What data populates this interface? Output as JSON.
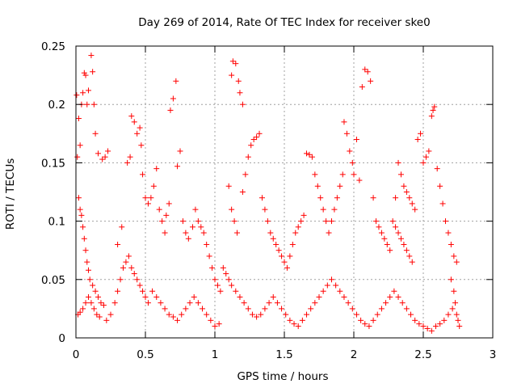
{
  "chart_data": {
    "type": "scatter",
    "title": "Day 269 of 2014, Rate Of TEC Index for receiver ske0",
    "xlabel": "GPS time / hours",
    "ylabel": "ROTI / TECUs",
    "xlim": [
      0,
      3
    ],
    "ylim": [
      0,
      0.25
    ],
    "xticks": [
      0,
      0.5,
      1,
      1.5,
      2,
      2.5,
      3
    ],
    "xtick_labels": [
      "0",
      "0.5",
      "1",
      "1.5",
      "2",
      "2.5",
      "3"
    ],
    "yticks": [
      0,
      0.05,
      0.1,
      0.15,
      0.2,
      0.25
    ],
    "ytick_labels": [
      "0",
      "0.05",
      "0.1",
      "0.15",
      "0.2",
      "0.25"
    ],
    "grid": true,
    "marker": "+",
    "color": "#ff0000",
    "series": [
      {
        "name": "ske0",
        "points": [
          [
            0.005,
            0.208
          ],
          [
            0.02,
            0.188
          ],
          [
            0.03,
            0.165
          ],
          [
            0.04,
            0.2
          ],
          [
            0.05,
            0.21
          ],
          [
            0.06,
            0.227
          ],
          [
            0.07,
            0.225
          ],
          [
            0.08,
            0.2
          ],
          [
            0.09,
            0.212
          ],
          [
            0.11,
            0.242
          ],
          [
            0.12,
            0.228
          ],
          [
            0.13,
            0.2
          ],
          [
            0.14,
            0.175
          ],
          [
            0.16,
            0.158
          ],
          [
            0.19,
            0.153
          ],
          [
            0.21,
            0.155
          ],
          [
            0.23,
            0.16
          ],
          [
            0.01,
            0.155
          ],
          [
            0.02,
            0.12
          ],
          [
            0.03,
            0.11
          ],
          [
            0.04,
            0.105
          ],
          [
            0.05,
            0.095
          ],
          [
            0.06,
            0.085
          ],
          [
            0.07,
            0.075
          ],
          [
            0.08,
            0.065
          ],
          [
            0.09,
            0.058
          ],
          [
            0.1,
            0.05
          ],
          [
            0.12,
            0.045
          ],
          [
            0.14,
            0.04
          ],
          [
            0.16,
            0.035
          ],
          [
            0.18,
            0.03
          ],
          [
            0.2,
            0.028
          ],
          [
            0.015,
            0.02
          ],
          [
            0.03,
            0.022
          ],
          [
            0.05,
            0.025
          ],
          [
            0.07,
            0.03
          ],
          [
            0.09,
            0.035
          ],
          [
            0.11,
            0.03
          ],
          [
            0.13,
            0.025
          ],
          [
            0.15,
            0.02
          ],
          [
            0.17,
            0.018
          ],
          [
            0.22,
            0.015
          ],
          [
            0.25,
            0.02
          ],
          [
            0.28,
            0.03
          ],
          [
            0.3,
            0.04
          ],
          [
            0.32,
            0.05
          ],
          [
            0.34,
            0.06
          ],
          [
            0.36,
            0.065
          ],
          [
            0.38,
            0.07
          ],
          [
            0.4,
            0.06
          ],
          [
            0.42,
            0.055
          ],
          [
            0.44,
            0.05
          ],
          [
            0.46,
            0.045
          ],
          [
            0.48,
            0.04
          ],
          [
            0.5,
            0.035
          ],
          [
            0.52,
            0.03
          ],
          [
            0.3,
            0.08
          ],
          [
            0.33,
            0.095
          ],
          [
            0.37,
            0.15
          ],
          [
            0.39,
            0.155
          ],
          [
            0.4,
            0.19
          ],
          [
            0.42,
            0.185
          ],
          [
            0.44,
            0.175
          ],
          [
            0.46,
            0.18
          ],
          [
            0.47,
            0.165
          ],
          [
            0.48,
            0.14
          ],
          [
            0.5,
            0.12
          ],
          [
            0.52,
            0.115
          ],
          [
            0.54,
            0.12
          ],
          [
            0.56,
            0.13
          ],
          [
            0.58,
            0.145
          ],
          [
            0.6,
            0.11
          ],
          [
            0.62,
            0.1
          ],
          [
            0.64,
            0.09
          ],
          [
            0.65,
            0.105
          ],
          [
            0.67,
            0.115
          ],
          [
            0.68,
            0.195
          ],
          [
            0.7,
            0.205
          ],
          [
            0.72,
            0.22
          ],
          [
            0.73,
            0.147
          ],
          [
            0.75,
            0.16
          ],
          [
            0.77,
            0.1
          ],
          [
            0.79,
            0.09
          ],
          [
            0.81,
            0.085
          ],
          [
            0.84,
            0.095
          ],
          [
            0.86,
            0.11
          ],
          [
            0.88,
            0.1
          ],
          [
            0.9,
            0.095
          ],
          [
            0.92,
            0.09
          ],
          [
            0.94,
            0.08
          ],
          [
            0.96,
            0.07
          ],
          [
            0.98,
            0.06
          ],
          [
            1.0,
            0.05
          ],
          [
            1.02,
            0.045
          ],
          [
            1.04,
            0.04
          ],
          [
            0.55,
            0.04
          ],
          [
            0.58,
            0.035
          ],
          [
            0.61,
            0.03
          ],
          [
            0.64,
            0.025
          ],
          [
            0.67,
            0.02
          ],
          [
            0.7,
            0.018
          ],
          [
            0.73,
            0.015
          ],
          [
            0.76,
            0.02
          ],
          [
            0.79,
            0.025
          ],
          [
            0.82,
            0.03
          ],
          [
            0.85,
            0.035
          ],
          [
            0.88,
            0.03
          ],
          [
            0.91,
            0.025
          ],
          [
            0.94,
            0.02
          ],
          [
            0.97,
            0.015
          ],
          [
            1.0,
            0.01
          ],
          [
            1.03,
            0.012
          ],
          [
            1.12,
            0.225
          ],
          [
            1.13,
            0.237
          ],
          [
            1.15,
            0.235
          ],
          [
            1.17,
            0.22
          ],
          [
            1.18,
            0.21
          ],
          [
            1.2,
            0.2
          ],
          [
            1.1,
            0.13
          ],
          [
            1.12,
            0.11
          ],
          [
            1.14,
            0.1
          ],
          [
            1.16,
            0.09
          ],
          [
            1.2,
            0.125
          ],
          [
            1.22,
            0.14
          ],
          [
            1.24,
            0.155
          ],
          [
            1.26,
            0.165
          ],
          [
            1.28,
            0.17
          ],
          [
            1.3,
            0.172
          ],
          [
            1.32,
            0.175
          ],
          [
            1.06,
            0.06
          ],
          [
            1.08,
            0.055
          ],
          [
            1.1,
            0.05
          ],
          [
            1.12,
            0.045
          ],
          [
            1.15,
            0.04
          ],
          [
            1.18,
            0.035
          ],
          [
            1.21,
            0.03
          ],
          [
            1.24,
            0.025
          ],
          [
            1.27,
            0.02
          ],
          [
            1.3,
            0.018
          ],
          [
            1.33,
            0.02
          ],
          [
            1.36,
            0.025
          ],
          [
            1.39,
            0.03
          ],
          [
            1.42,
            0.035
          ],
          [
            1.45,
            0.03
          ],
          [
            1.34,
            0.12
          ],
          [
            1.36,
            0.11
          ],
          [
            1.38,
            0.1
          ],
          [
            1.4,
            0.09
          ],
          [
            1.42,
            0.085
          ],
          [
            1.44,
            0.08
          ],
          [
            1.46,
            0.075
          ],
          [
            1.48,
            0.07
          ],
          [
            1.5,
            0.065
          ],
          [
            1.52,
            0.06
          ],
          [
            1.54,
            0.07
          ],
          [
            1.56,
            0.08
          ],
          [
            1.58,
            0.09
          ],
          [
            1.6,
            0.095
          ],
          [
            1.62,
            0.1
          ],
          [
            1.64,
            0.105
          ],
          [
            1.66,
            0.158
          ],
          [
            1.68,
            0.157
          ],
          [
            1.7,
            0.155
          ],
          [
            1.72,
            0.14
          ],
          [
            1.74,
            0.13
          ],
          [
            1.76,
            0.12
          ],
          [
            1.78,
            0.11
          ],
          [
            1.8,
            0.1
          ],
          [
            1.48,
            0.025
          ],
          [
            1.51,
            0.02
          ],
          [
            1.54,
            0.015
          ],
          [
            1.57,
            0.012
          ],
          [
            1.6,
            0.01
          ],
          [
            1.63,
            0.015
          ],
          [
            1.66,
            0.02
          ],
          [
            1.69,
            0.025
          ],
          [
            1.72,
            0.03
          ],
          [
            1.75,
            0.035
          ],
          [
            1.78,
            0.04
          ],
          [
            1.81,
            0.045
          ],
          [
            1.84,
            0.05
          ],
          [
            1.87,
            0.045
          ],
          [
            1.9,
            0.04
          ],
          [
            1.93,
            0.035
          ],
          [
            1.82,
            0.09
          ],
          [
            1.84,
            0.1
          ],
          [
            1.86,
            0.11
          ],
          [
            1.88,
            0.12
          ],
          [
            1.9,
            0.13
          ],
          [
            1.92,
            0.14
          ],
          [
            1.93,
            0.185
          ],
          [
            1.95,
            0.175
          ],
          [
            1.97,
            0.16
          ],
          [
            1.99,
            0.15
          ],
          [
            2.0,
            0.14
          ],
          [
            2.02,
            0.17
          ],
          [
            2.04,
            0.135
          ],
          [
            2.06,
            0.215
          ],
          [
            2.08,
            0.23
          ],
          [
            2.1,
            0.228
          ],
          [
            2.12,
            0.22
          ],
          [
            2.14,
            0.12
          ],
          [
            2.16,
            0.1
          ],
          [
            2.18,
            0.095
          ],
          [
            2.2,
            0.09
          ],
          [
            2.22,
            0.085
          ],
          [
            2.24,
            0.08
          ],
          [
            2.26,
            0.075
          ],
          [
            1.96,
            0.03
          ],
          [
            1.99,
            0.025
          ],
          [
            2.02,
            0.02
          ],
          [
            2.05,
            0.015
          ],
          [
            2.08,
            0.012
          ],
          [
            2.11,
            0.01
          ],
          [
            2.14,
            0.015
          ],
          [
            2.17,
            0.02
          ],
          [
            2.2,
            0.025
          ],
          [
            2.23,
            0.03
          ],
          [
            2.26,
            0.035
          ],
          [
            2.29,
            0.04
          ],
          [
            2.32,
            0.035
          ],
          [
            2.35,
            0.03
          ],
          [
            2.38,
            0.025
          ],
          [
            2.41,
            0.02
          ],
          [
            2.28,
            0.1
          ],
          [
            2.3,
            0.095
          ],
          [
            2.32,
            0.09
          ],
          [
            2.34,
            0.085
          ],
          [
            2.36,
            0.08
          ],
          [
            2.38,
            0.075
          ],
          [
            2.4,
            0.07
          ],
          [
            2.42,
            0.065
          ],
          [
            2.3,
            0.12
          ],
          [
            2.32,
            0.15
          ],
          [
            2.34,
            0.14
          ],
          [
            2.36,
            0.13
          ],
          [
            2.38,
            0.125
          ],
          [
            2.4,
            0.12
          ],
          [
            2.42,
            0.115
          ],
          [
            2.44,
            0.11
          ],
          [
            2.46,
            0.17
          ],
          [
            2.48,
            0.175
          ],
          [
            2.5,
            0.15
          ],
          [
            2.52,
            0.155
          ],
          [
            2.54,
            0.16
          ],
          [
            2.56,
            0.19
          ],
          [
            2.57,
            0.195
          ],
          [
            2.58,
            0.198
          ],
          [
            2.6,
            0.145
          ],
          [
            2.62,
            0.13
          ],
          [
            2.64,
            0.115
          ],
          [
            2.66,
            0.1
          ],
          [
            2.68,
            0.09
          ],
          [
            2.7,
            0.08
          ],
          [
            2.72,
            0.07
          ],
          [
            2.74,
            0.065
          ],
          [
            2.44,
            0.015
          ],
          [
            2.47,
            0.012
          ],
          [
            2.5,
            0.01
          ],
          [
            2.53,
            0.008
          ],
          [
            2.56,
            0.006
          ],
          [
            2.59,
            0.01
          ],
          [
            2.62,
            0.012
          ],
          [
            2.65,
            0.015
          ],
          [
            2.68,
            0.02
          ],
          [
            2.71,
            0.025
          ],
          [
            2.74,
            0.02
          ],
          [
            2.75,
            0.015
          ],
          [
            2.76,
            0.01
          ],
          [
            2.73,
            0.03
          ],
          [
            2.72,
            0.04
          ],
          [
            2.7,
            0.05
          ]
        ]
      }
    ]
  }
}
